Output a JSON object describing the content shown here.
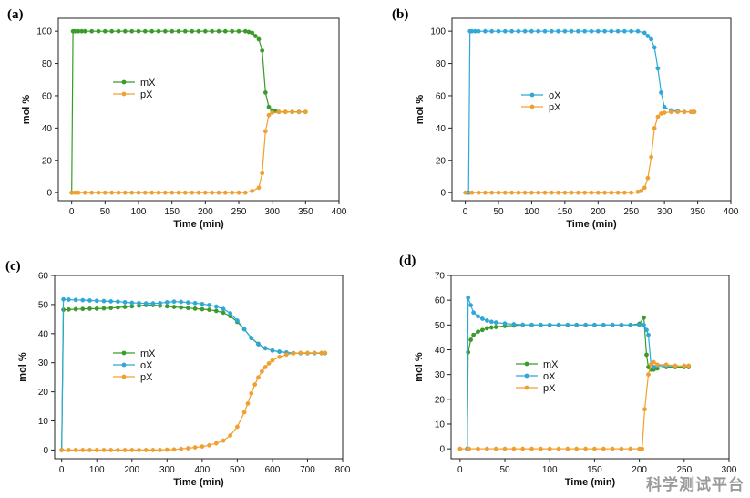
{
  "colors": {
    "green": "#3a9a2a",
    "blue": "#2fa8d8",
    "orange": "#f0a030",
    "axis": "#222222"
  },
  "watermark": "科学测试平台",
  "chart_data": [
    {
      "id": "a",
      "type": "line",
      "panel_label": "(a)",
      "xlabel": "Time (min)",
      "ylabel": "mol %",
      "xlim": [
        -20,
        400
      ],
      "ylim": [
        -5,
        108
      ],
      "xticks": [
        0,
        50,
        100,
        150,
        200,
        250,
        300,
        350,
        400
      ],
      "yticks": [
        0,
        20,
        40,
        60,
        80,
        100
      ],
      "legend_placement": "center-left",
      "series": [
        {
          "name": "mX",
          "color": "green",
          "x": [
            0,
            2,
            5,
            10,
            15,
            20,
            30,
            40,
            50,
            60,
            70,
            80,
            90,
            100,
            110,
            120,
            130,
            140,
            150,
            160,
            170,
            180,
            190,
            200,
            210,
            220,
            230,
            240,
            250,
            260,
            265,
            270,
            275,
            280,
            285,
            290,
            295,
            300,
            305,
            310,
            320,
            330,
            340,
            350
          ],
          "y": [
            0,
            100,
            100,
            100,
            100,
            100,
            100,
            100,
            100,
            100,
            100,
            100,
            100,
            100,
            100,
            100,
            100,
            100,
            100,
            100,
            100,
            100,
            100,
            100,
            100,
            100,
            100,
            100,
            100,
            100,
            99.5,
            99,
            97,
            95,
            88,
            62,
            53,
            51,
            50.5,
            50,
            50,
            50,
            50,
            50
          ]
        },
        {
          "name": "pX",
          "color": "orange",
          "x": [
            0,
            5,
            10,
            20,
            30,
            40,
            50,
            60,
            70,
            80,
            90,
            100,
            110,
            120,
            130,
            140,
            150,
            160,
            170,
            180,
            190,
            200,
            210,
            220,
            230,
            240,
            250,
            260,
            270,
            280,
            285,
            290,
            295,
            300,
            310,
            320,
            330,
            340,
            350
          ],
          "y": [
            0,
            0,
            0,
            0,
            0,
            0,
            0,
            0,
            0,
            0,
            0,
            0,
            0,
            0,
            0,
            0,
            0,
            0,
            0,
            0,
            0,
            0,
            0,
            0,
            0,
            0,
            0,
            0,
            1,
            3,
            12,
            38,
            48,
            49.5,
            50,
            50,
            50,
            50,
            50
          ]
        }
      ]
    },
    {
      "id": "b",
      "type": "line",
      "panel_label": "(b)",
      "xlabel": "Time (min)",
      "ylabel": "mol %",
      "xlim": [
        -20,
        400
      ],
      "ylim": [
        -5,
        108
      ],
      "xticks": [
        0,
        50,
        100,
        150,
        200,
        250,
        300,
        350,
        400
      ],
      "yticks": [
        0,
        20,
        40,
        60,
        80,
        100
      ],
      "legend_placement": "center-right",
      "series": [
        {
          "name": "oX",
          "color": "blue",
          "x": [
            5,
            7,
            10,
            15,
            20,
            30,
            40,
            50,
            60,
            70,
            80,
            90,
            100,
            110,
            120,
            130,
            140,
            150,
            160,
            170,
            180,
            190,
            200,
            210,
            220,
            230,
            240,
            250,
            260,
            270,
            275,
            280,
            285,
            290,
            295,
            300,
            310,
            320,
            330,
            340,
            345
          ],
          "y": [
            0,
            100,
            100,
            100,
            100,
            100,
            100,
            100,
            100,
            100,
            100,
            100,
            100,
            100,
            100,
            100,
            100,
            100,
            100,
            100,
            100,
            100,
            100,
            100,
            100,
            100,
            100,
            100,
            100,
            99,
            97,
            95,
            90,
            77,
            62,
            53,
            51,
            50.5,
            50,
            50,
            50
          ]
        },
        {
          "name": "pX",
          "color": "orange",
          "x": [
            0,
            10,
            20,
            30,
            40,
            50,
            60,
            70,
            80,
            90,
            100,
            110,
            120,
            130,
            140,
            150,
            160,
            170,
            180,
            190,
            200,
            210,
            220,
            230,
            240,
            250,
            260,
            265,
            270,
            275,
            280,
            285,
            290,
            295,
            300,
            310,
            320,
            330,
            340,
            345
          ],
          "y": [
            0,
            0,
            0,
            0,
            0,
            0,
            0,
            0,
            0,
            0,
            0,
            0,
            0,
            0,
            0,
            0,
            0,
            0,
            0,
            0,
            0,
            0,
            0,
            0,
            0,
            0,
            0.5,
            1,
            3,
            9,
            22,
            40,
            47,
            49,
            49.5,
            50,
            50,
            50,
            50,
            50
          ]
        }
      ]
    },
    {
      "id": "c",
      "type": "line",
      "panel_label": "(c)",
      "xlabel": "Time (min)",
      "ylabel": "mol %",
      "xlim": [
        -20,
        800
      ],
      "ylim": [
        -3,
        60
      ],
      "xticks": [
        0,
        100,
        200,
        300,
        400,
        500,
        600,
        700,
        800
      ],
      "yticks": [
        0,
        10,
        20,
        30,
        40,
        50,
        60
      ],
      "legend_placement": "center-left",
      "series": [
        {
          "name": "mX",
          "color": "green",
          "x": [
            0,
            5,
            20,
            40,
            60,
            80,
            100,
            120,
            140,
            160,
            180,
            200,
            220,
            240,
            260,
            280,
            300,
            320,
            340,
            360,
            380,
            400,
            420,
            440,
            460,
            480,
            500,
            520,
            540,
            560,
            580,
            600,
            620,
            640,
            660,
            680,
            700,
            720,
            740,
            750
          ],
          "y": [
            0,
            48.2,
            48.3,
            48.4,
            48.5,
            48.6,
            48.6,
            48.7,
            48.8,
            49.0,
            49.2,
            49.4,
            49.6,
            49.8,
            49.8,
            49.6,
            49.4,
            49.2,
            49.0,
            48.8,
            48.6,
            48.4,
            48.2,
            47.8,
            47.2,
            46.0,
            44.0,
            41.5,
            38.5,
            36.5,
            35.0,
            34.2,
            33.8,
            33.5,
            33.3,
            33.3,
            33.3,
            33.3,
            33.3,
            33.3
          ]
        },
        {
          "name": "oX",
          "color": "blue",
          "x": [
            0,
            5,
            20,
            40,
            60,
            80,
            100,
            120,
            140,
            160,
            180,
            200,
            220,
            240,
            260,
            280,
            300,
            320,
            340,
            360,
            380,
            400,
            420,
            440,
            460,
            480,
            500,
            520,
            540,
            560,
            580,
            600,
            620,
            640,
            660,
            680,
            700,
            720,
            740,
            750
          ],
          "y": [
            0,
            51.8,
            51.7,
            51.6,
            51.5,
            51.4,
            51.3,
            51.2,
            51.1,
            51.0,
            50.8,
            50.6,
            50.5,
            50.4,
            50.4,
            50.5,
            50.8,
            51.0,
            50.9,
            50.7,
            50.5,
            50.2,
            49.8,
            49.3,
            48.5,
            47.0,
            44.5,
            41.5,
            38.5,
            36.3,
            35.0,
            34.2,
            33.8,
            33.5,
            33.3,
            33.3,
            33.3,
            33.3,
            33.3,
            33.3
          ]
        },
        {
          "name": "pX",
          "color": "orange",
          "x": [
            0,
            20,
            40,
            60,
            80,
            100,
            120,
            140,
            160,
            180,
            200,
            220,
            240,
            260,
            280,
            300,
            320,
            340,
            360,
            380,
            400,
            420,
            440,
            460,
            480,
            500,
            520,
            530,
            540,
            550,
            560,
            570,
            580,
            590,
            600,
            620,
            640,
            660,
            680,
            700,
            720,
            740,
            750
          ],
          "y": [
            0,
            0,
            0,
            0,
            0,
            0,
            0,
            0,
            0,
            0,
            0,
            0,
            0,
            0,
            0,
            0.1,
            0.2,
            0.4,
            0.6,
            0.9,
            1.2,
            1.6,
            2.3,
            3.2,
            5.0,
            8.0,
            13.0,
            16.0,
            19.5,
            22.5,
            25.0,
            27.0,
            28.5,
            29.8,
            30.8,
            32.0,
            32.8,
            33.2,
            33.4,
            33.4,
            33.4,
            33.4,
            33.4
          ]
        }
      ]
    },
    {
      "id": "d",
      "type": "line",
      "panel_label": "(d)",
      "xlabel": "Time (min)",
      "ylabel": "mol %",
      "xlim": [
        -10,
        300
      ],
      "ylim": [
        -4,
        70
      ],
      "xticks": [
        0,
        50,
        100,
        150,
        200,
        250,
        300
      ],
      "yticks": [
        0,
        10,
        20,
        30,
        40,
        50,
        60,
        70
      ],
      "legend_placement": "center-left",
      "series": [
        {
          "name": "mX",
          "color": "green",
          "x": [
            8,
            9,
            12,
            15,
            20,
            25,
            30,
            35,
            40,
            50,
            60,
            70,
            80,
            90,
            100,
            110,
            120,
            130,
            140,
            150,
            160,
            170,
            180,
            190,
            200,
            205,
            208,
            210,
            213,
            216,
            220,
            230,
            240,
            250,
            255
          ],
          "y": [
            0,
            39,
            44,
            46,
            47.3,
            48,
            48.7,
            49,
            49.2,
            49.6,
            49.8,
            50,
            50,
            50,
            50,
            50,
            50,
            50,
            50,
            50,
            50,
            50,
            50,
            50,
            50.5,
            53,
            38,
            33,
            32,
            32,
            32.5,
            33,
            33,
            33,
            33
          ]
        },
        {
          "name": "oX",
          "color": "blue",
          "x": [
            8,
            9,
            12,
            15,
            20,
            25,
            30,
            35,
            40,
            50,
            60,
            70,
            80,
            90,
            100,
            110,
            120,
            130,
            140,
            150,
            160,
            170,
            180,
            190,
            200,
            205,
            208,
            210,
            213,
            216,
            220,
            230,
            240,
            250,
            255
          ],
          "y": [
            0,
            61,
            58,
            55,
            53.5,
            52.5,
            51.8,
            51.3,
            51,
            50.6,
            50.3,
            50.1,
            50,
            50,
            50,
            50,
            50,
            50,
            50,
            50,
            50,
            50,
            50,
            50,
            50,
            50,
            48,
            46,
            34,
            33,
            33.5,
            33.5,
            33.5,
            33.5,
            33.5
          ]
        },
        {
          "name": "pX",
          "color": "orange",
          "x": [
            0,
            10,
            20,
            30,
            40,
            50,
            60,
            70,
            80,
            90,
            100,
            110,
            120,
            130,
            140,
            150,
            160,
            170,
            180,
            190,
            200,
            203,
            206,
            210,
            213,
            216,
            220,
            230,
            240,
            250,
            255
          ],
          "y": [
            0,
            0,
            0,
            0,
            0,
            0,
            0,
            0,
            0,
            0,
            0,
            0,
            0,
            0,
            0,
            0,
            0,
            0,
            0,
            0,
            0,
            0,
            16,
            30,
            34,
            35,
            34,
            34,
            33.5,
            33.5,
            33.5
          ]
        }
      ]
    }
  ]
}
